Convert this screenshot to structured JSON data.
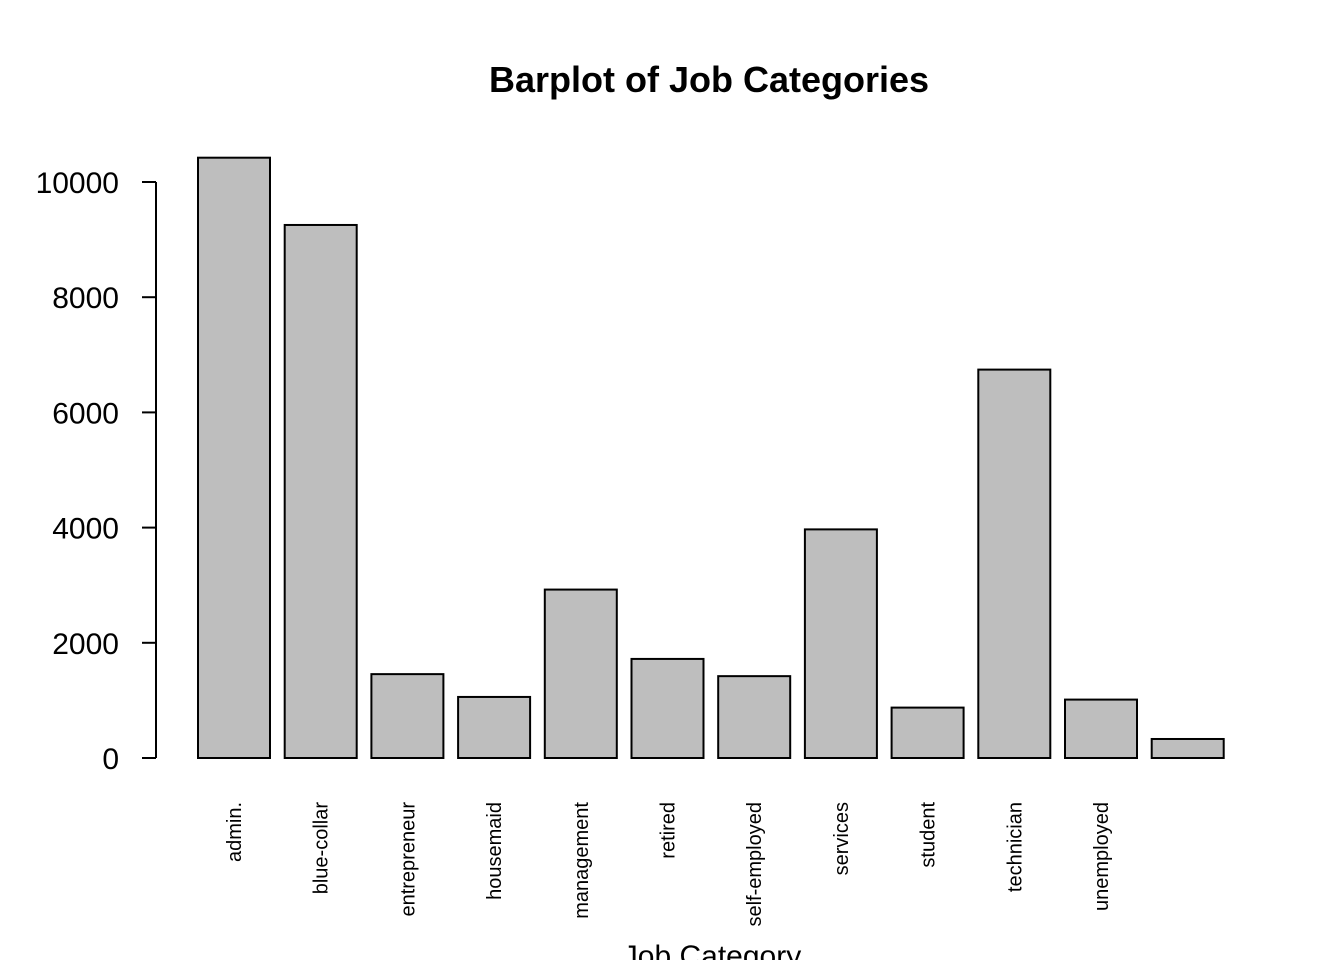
{
  "chart_data": {
    "type": "bar",
    "title": "Barplot of Job Categories",
    "xlabel": "Job Category",
    "ylabel": "",
    "categories": [
      "admin.",
      "blue-collar",
      "entrepreneur",
      "housemaid",
      "management",
      "retired",
      "self-employed",
      "services",
      "student",
      "technician",
      "unemployed",
      ""
    ],
    "values": [
      10422,
      9254,
      1456,
      1060,
      2924,
      1720,
      1421,
      3969,
      875,
      6743,
      1014,
      330
    ],
    "ylim": [
      0,
      10000
    ],
    "yticks": [
      "0",
      "2000",
      "4000",
      "6000",
      "8000",
      "10000"
    ],
    "grid": false,
    "bar_color": "#bebebe",
    "bar_border": "#000000"
  }
}
